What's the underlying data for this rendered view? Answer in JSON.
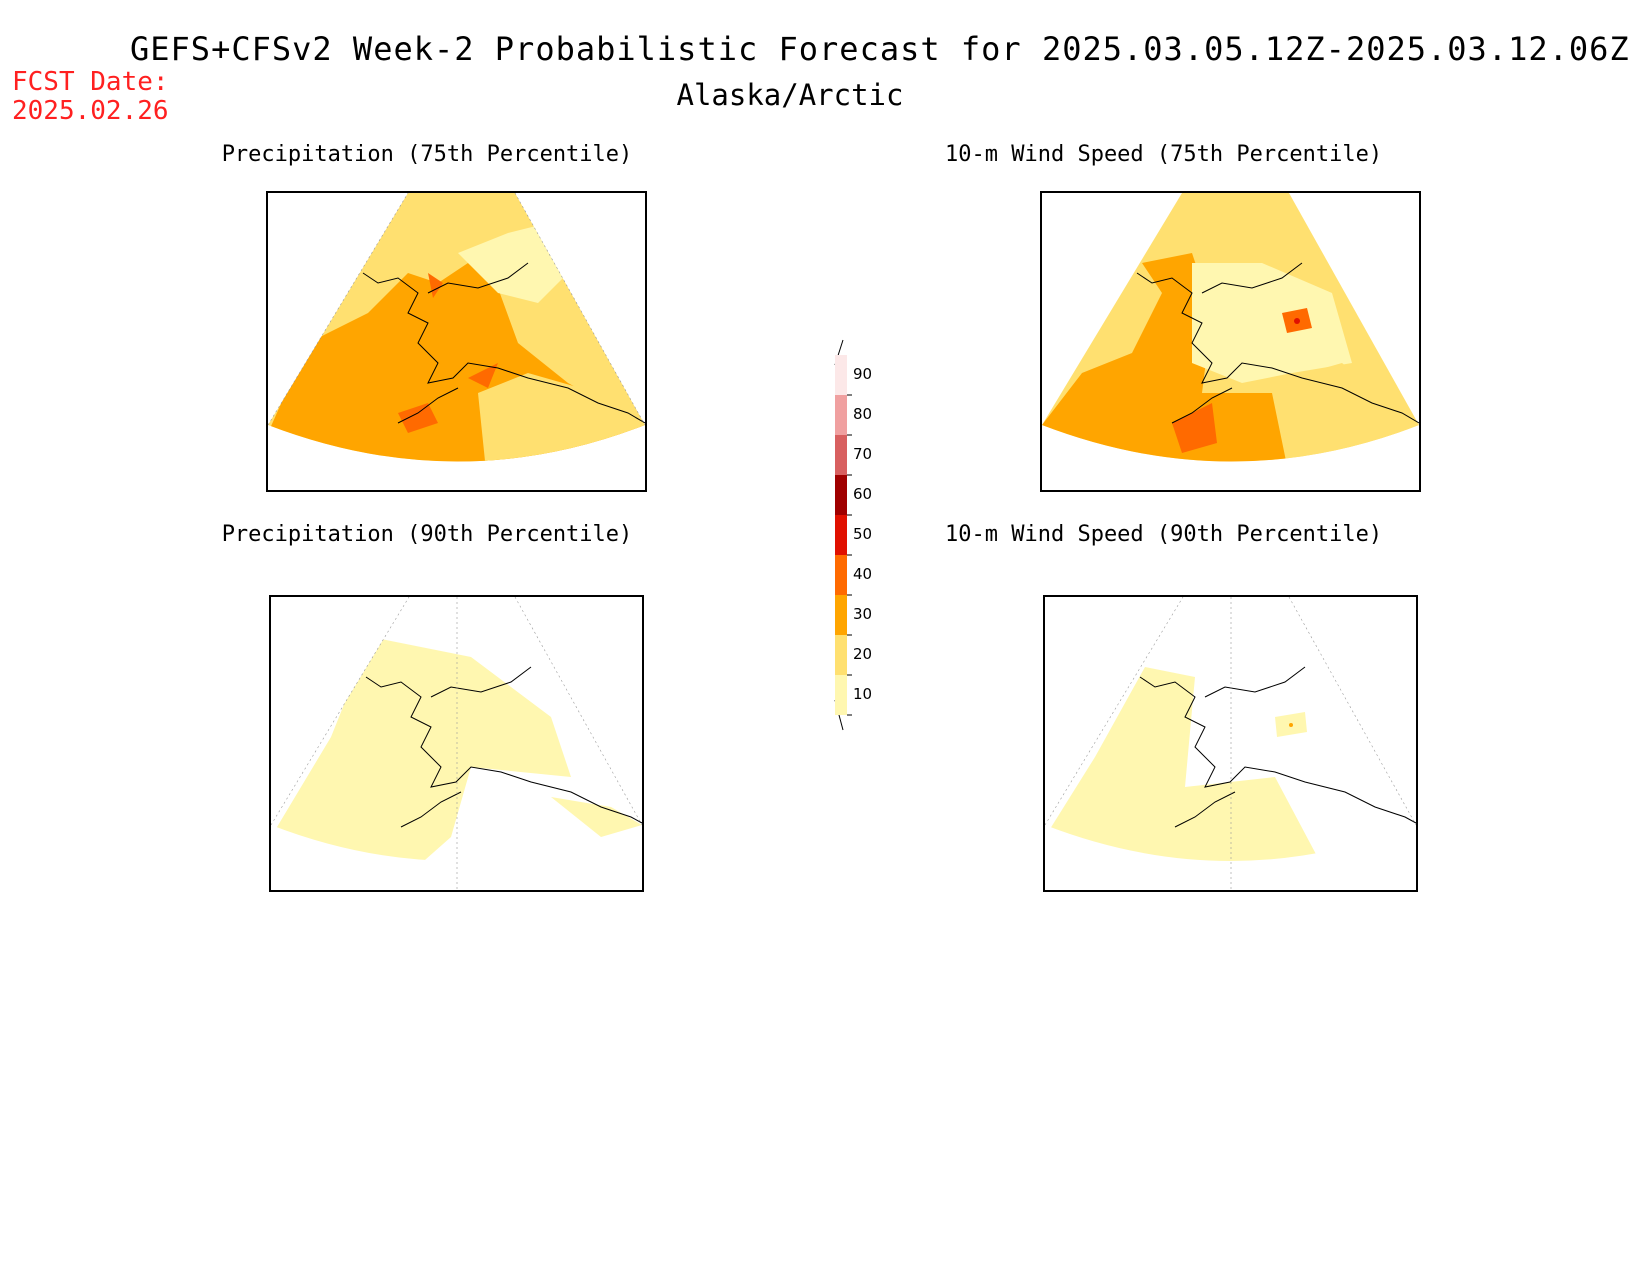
{
  "header": {
    "title": "GEFS+CFSv2 Week-2 Probabilistic Forecast for 2025.03.05.12Z-2025.03.12.06Z",
    "region": "Alaska/Arctic",
    "fcst_label": "FCST Date:",
    "fcst_date": "2025.02.26"
  },
  "panels": [
    {
      "title": "Precipitation (75th Percentile)"
    },
    {
      "title": "10-m Wind Speed (75th Percentile)"
    },
    {
      "title": "Precipitation (90th Percentile)"
    },
    {
      "title": "10-m Wind Speed (90th Percentile)"
    }
  ],
  "colorbar": {
    "levels": [
      "10",
      "20",
      "30",
      "40",
      "50",
      "60",
      "70",
      "80",
      "90"
    ],
    "colors": {
      "c10": "#fff7b0",
      "c20": "#ffe070",
      "c30": "#ffa500",
      "c40": "#ff6a00",
      "c50": "#e01000",
      "c60": "#a00000",
      "c70": "#d86060",
      "c80": "#f0a0a0",
      "c90": "#fce8e8"
    }
  }
}
